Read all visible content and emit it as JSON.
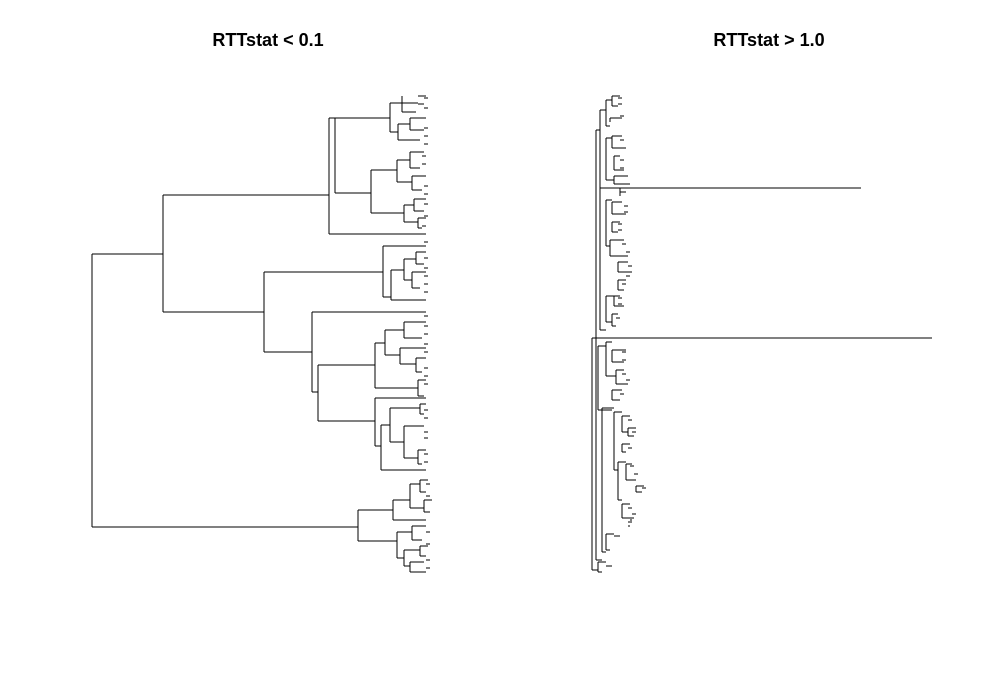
{
  "panels": [
    {
      "id": "left",
      "title": "RTTstat < 0.1"
    },
    {
      "id": "right",
      "title": "RTTstat > 1.0"
    }
  ],
  "colors": {
    "background": "#ffffff",
    "lines": "#000000",
    "text": "#000000"
  }
}
